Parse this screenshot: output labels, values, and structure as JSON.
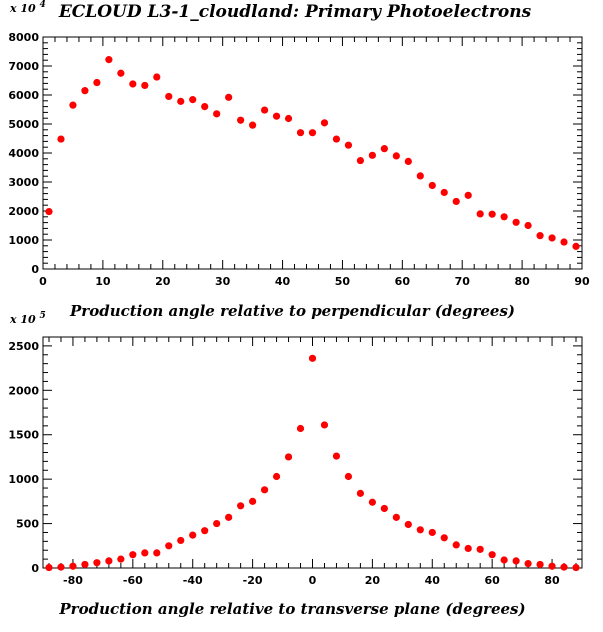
{
  "title": "ECLOUD L3-1_cloudland: Primary Photoelectrons",
  "chart_data": [
    {
      "type": "scatter",
      "xlabel": "Production angle relative to perpendicular (degrees)",
      "ylabel": "",
      "y_multiplier": "x 10 4",
      "xlim": [
        0,
        90
      ],
      "ylim": [
        0,
        8000
      ],
      "x_ticks": [
        0,
        10,
        20,
        30,
        40,
        50,
        60,
        70,
        80,
        90
      ],
      "y_ticks": [
        0,
        1000,
        2000,
        3000,
        4000,
        5000,
        6000,
        7000,
        8000
      ],
      "marker_color": "#ff0000",
      "x": [
        1,
        3,
        5,
        7,
        9,
        11,
        13,
        15,
        17,
        19,
        21,
        23,
        25,
        27,
        29,
        31,
        33,
        35,
        37,
        39,
        41,
        43,
        45,
        47,
        49,
        51,
        53,
        55,
        57,
        59,
        61,
        63,
        65,
        67,
        69,
        71,
        73,
        75,
        77,
        79,
        81,
        83,
        85,
        87,
        89
      ],
      "y": [
        1980,
        4480,
        5650,
        6150,
        6430,
        7220,
        6750,
        6380,
        6330,
        6620,
        5950,
        5780,
        5840,
        5600,
        5350,
        5920,
        5130,
        4960,
        5480,
        5270,
        5190,
        4700,
        4700,
        5040,
        4480,
        4270,
        3740,
        3920,
        4150,
        3900,
        3710,
        3210,
        2880,
        2640,
        2330,
        2540,
        1900,
        1890,
        1800,
        1610,
        1500,
        1150,
        1070,
        930,
        780
      ]
    },
    {
      "type": "scatter",
      "xlabel": "Production angle relative to transverse plane (degrees)",
      "ylabel": "",
      "y_multiplier": "x 10 5",
      "xlim": [
        -90,
        90
      ],
      "ylim": [
        0,
        2600
      ],
      "x_ticks": [
        -80,
        -60,
        -40,
        -20,
        0,
        20,
        40,
        60,
        80
      ],
      "y_ticks": [
        0,
        500,
        1000,
        1500,
        2000,
        2500
      ],
      "marker_color": "#ff0000",
      "x": [
        -88,
        -84,
        -80,
        -76,
        -72,
        -68,
        -64,
        -60,
        -56,
        -52,
        -48,
        -44,
        -40,
        -36,
        -32,
        -28,
        -24,
        -20,
        -16,
        -12,
        -8,
        -4,
        0,
        4,
        8,
        12,
        16,
        20,
        24,
        28,
        32,
        36,
        40,
        44,
        48,
        52,
        56,
        60,
        64,
        68,
        72,
        76,
        80,
        84,
        88
      ],
      "y": [
        5,
        10,
        20,
        40,
        60,
        80,
        100,
        150,
        170,
        170,
        250,
        310,
        370,
        420,
        500,
        570,
        700,
        750,
        880,
        1030,
        1250,
        1570,
        2360,
        1610,
        1260,
        1030,
        840,
        740,
        670,
        570,
        490,
        430,
        400,
        340,
        260,
        220,
        210,
        150,
        90,
        80,
        50,
        40,
        20,
        10,
        5
      ]
    }
  ]
}
